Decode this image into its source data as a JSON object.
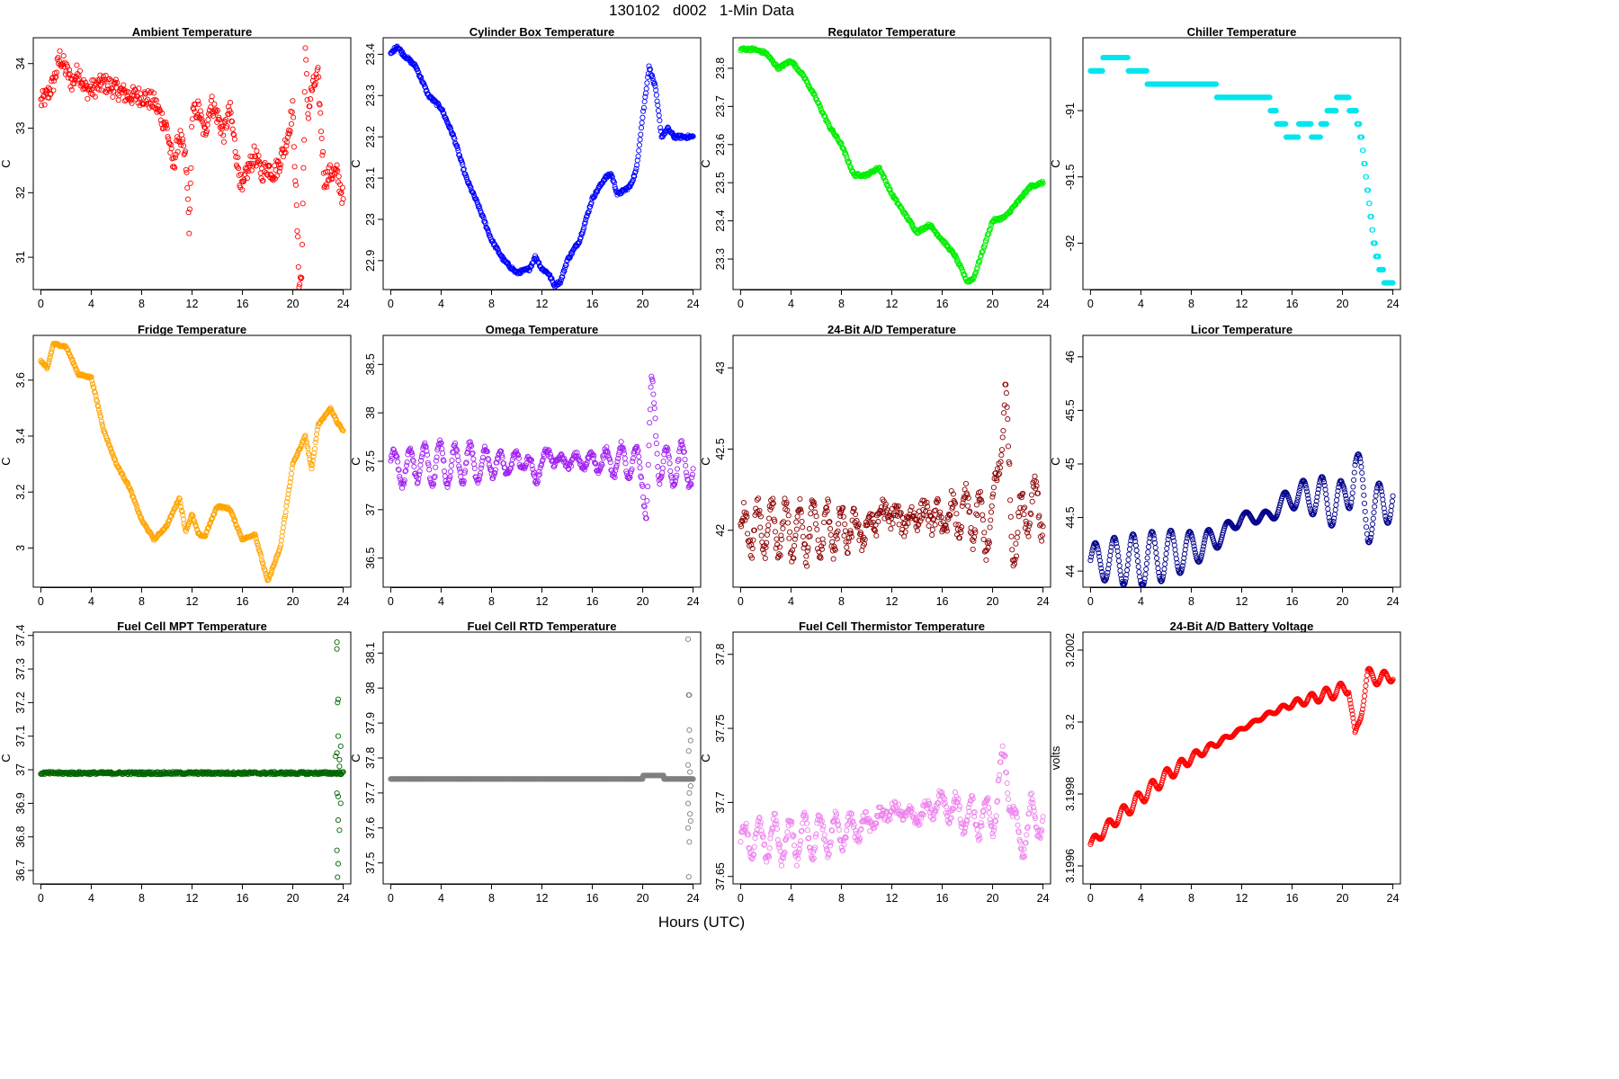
{
  "title": "130102   d002   1-Min Data",
  "x_axis_title": "Hours (UTC)",
  "chart_data": [
    {
      "type": "scatter",
      "title": "Ambient Temperature",
      "ylabel": "C",
      "color": "#ff0000",
      "ylim": [
        30.5,
        34.4
      ],
      "yticks": [
        31,
        32,
        33,
        34
      ],
      "xlim": [
        0,
        24
      ],
      "xticks": [
        0,
        4,
        8,
        12,
        16,
        20,
        24
      ],
      "noise": 0.15,
      "x": [
        0,
        0.5,
        1,
        1.5,
        2,
        2.5,
        3,
        3.5,
        4,
        5,
        6,
        7,
        8,
        9,
        10,
        10.5,
        11,
        11.5,
        11.8,
        12,
        12.5,
        13,
        13.5,
        14,
        14.5,
        15,
        15.5,
        16,
        16.3,
        17,
        17.5,
        18,
        18.5,
        19,
        19.5,
        20,
        20.5,
        20.7,
        21,
        21.2,
        21.5,
        22,
        22.5,
        23,
        23.5,
        24
      ],
      "y": [
        33.4,
        33.5,
        33.7,
        34.1,
        33.9,
        33.7,
        33.9,
        33.6,
        33.6,
        33.7,
        33.6,
        33.5,
        33.5,
        33.4,
        33.0,
        32.4,
        32.9,
        32.5,
        31.4,
        33.2,
        33.3,
        32.9,
        33.4,
        33.2,
        32.9,
        33.3,
        32.6,
        32.0,
        32.3,
        32.6,
        32.3,
        32.4,
        32.3,
        32.5,
        32.8,
        33.3,
        30.6,
        30.7,
        34.2,
        33.2,
        33.6,
        33.8,
        32.2,
        32.3,
        32.3,
        31.9
      ]
    },
    {
      "type": "scatter",
      "title": "Cylinder Box Temperature",
      "ylabel": "C",
      "color": "#0000ff",
      "ylim": [
        22.83,
        23.44
      ],
      "yticks": [
        22.9,
        23.0,
        23.1,
        23.2,
        23.3,
        23.4
      ],
      "xlim": [
        0,
        24
      ],
      "xticks": [
        0,
        4,
        8,
        12,
        16,
        20,
        24
      ],
      "noise": 0.004,
      "x": [
        0,
        0.5,
        1,
        2,
        3,
        4,
        5,
        6,
        7,
        8,
        9,
        10,
        11,
        11.5,
        12,
        12.5,
        13,
        13.5,
        14,
        15,
        16,
        17,
        17.5,
        18,
        19,
        19.5,
        20,
        20.5,
        21,
        21.5,
        22,
        22.5,
        23,
        24
      ],
      "y": [
        23.4,
        23.42,
        23.4,
        23.37,
        23.3,
        23.27,
        23.2,
        23.1,
        23.03,
        22.95,
        22.9,
        22.87,
        22.88,
        22.91,
        22.88,
        22.87,
        22.84,
        22.85,
        22.9,
        22.95,
        23.05,
        23.1,
        23.11,
        23.06,
        23.08,
        23.12,
        23.25,
        23.37,
        23.32,
        23.2,
        23.22,
        23.2,
        23.2,
        23.2
      ]
    },
    {
      "type": "scatter",
      "title": "Regulator Temperature",
      "ylabel": "C",
      "color": "#00ee00",
      "ylim": [
        23.22,
        23.88
      ],
      "yticks": [
        23.3,
        23.4,
        23.5,
        23.6,
        23.7,
        23.8
      ],
      "xlim": [
        0,
        24
      ],
      "xticks": [
        0,
        4,
        8,
        12,
        16,
        20,
        24
      ],
      "noise": 0.004,
      "x": [
        0,
        1,
        2,
        3,
        4,
        5,
        6,
        7,
        8,
        9,
        10,
        11,
        12,
        13,
        14,
        15,
        16,
        17,
        18,
        18.5,
        19,
        20,
        21,
        22,
        23,
        24
      ],
      "y": [
        23.85,
        23.85,
        23.84,
        23.8,
        23.82,
        23.78,
        23.72,
        23.65,
        23.6,
        23.52,
        23.52,
        23.54,
        23.47,
        23.42,
        23.37,
        23.39,
        23.35,
        23.31,
        23.24,
        23.25,
        23.3,
        23.4,
        23.41,
        23.45,
        23.49,
        23.5
      ]
    },
    {
      "type": "scatter",
      "title": "Chiller Temperature",
      "ylabel": "C",
      "color": "#00e5ee",
      "ylim": [
        -92.35,
        -90.45
      ],
      "yticks": [
        -92.0,
        -91.5,
        -91.0
      ],
      "xlim": [
        0,
        24
      ],
      "xticks": [
        0,
        4,
        8,
        12,
        16,
        20,
        24
      ],
      "noise": 0.0,
      "step": 0.1,
      "x": [
        0,
        2,
        4,
        5,
        7,
        9,
        11,
        12,
        14,
        15,
        16,
        17,
        18,
        19,
        20,
        21,
        21.5,
        22,
        22.5,
        23,
        23.5,
        24
      ],
      "y": [
        -90.7,
        -90.6,
        -90.7,
        -90.8,
        -90.8,
        -90.8,
        -90.9,
        -90.9,
        -90.9,
        -91.1,
        -91.2,
        -91.1,
        -91.2,
        -91.0,
        -90.9,
        -91.0,
        -91.2,
        -91.6,
        -92.0,
        -92.2,
        -92.3,
        -92.3
      ]
    },
    {
      "type": "scatter",
      "title": "Fridge Temperature",
      "ylabel": "C",
      "color": "#ffa500",
      "ylim": [
        2.86,
        3.76
      ],
      "yticks": [
        3.0,
        3.2,
        3.4,
        3.6
      ],
      "xlim": [
        0,
        24
      ],
      "xticks": [
        0,
        4,
        8,
        12,
        16,
        20,
        24
      ],
      "noise": 0.004,
      "x": [
        0,
        0.5,
        1,
        2,
        3,
        4,
        5,
        6,
        7,
        8,
        9,
        10,
        11,
        11.5,
        12,
        12.5,
        13,
        14,
        15,
        16,
        17,
        18,
        19,
        20,
        21,
        21.5,
        22,
        23,
        23.5,
        24
      ],
      "y": [
        3.67,
        3.64,
        3.73,
        3.72,
        3.62,
        3.61,
        3.42,
        3.3,
        3.22,
        3.1,
        3.03,
        3.08,
        3.18,
        3.06,
        3.12,
        3.05,
        3.04,
        3.15,
        3.14,
        3.03,
        3.05,
        2.88,
        3.0,
        3.3,
        3.4,
        3.28,
        3.44,
        3.5,
        3.45,
        3.42
      ]
    },
    {
      "type": "scatter",
      "title": "Omega Temperature",
      "ylabel": "C",
      "color": "#a020f0",
      "ylim": [
        36.2,
        38.8
      ],
      "yticks": [
        36.5,
        37.0,
        37.5,
        38.0,
        38.5
      ],
      "xlim": [
        0,
        24
      ],
      "xticks": [
        0,
        4,
        8,
        12,
        16,
        20,
        24
      ],
      "noise": 0.03,
      "x": [
        0,
        1,
        2,
        3,
        4,
        5,
        6,
        7,
        8,
        9,
        10,
        11,
        11.5,
        12,
        12.5,
        13,
        14,
        15,
        16,
        17,
        18,
        19,
        20,
        20.3,
        20.7,
        21,
        21.3,
        22,
        23,
        24
      ],
      "y": [
        37.5,
        37.4,
        37.5,
        37.45,
        37.5,
        37.45,
        37.5,
        37.45,
        37.5,
        37.45,
        37.5,
        37.5,
        37.3,
        37.5,
        37.6,
        37.5,
        37.5,
        37.5,
        37.5,
        37.5,
        37.5,
        37.5,
        37.4,
        37.0,
        38.2,
        37.9,
        37.5,
        37.4,
        37.5,
        37.4
      ],
      "osc_amp": 0.22,
      "osc_period": 1.2
    },
    {
      "type": "scatter",
      "title": "24-Bit A/D Temperature",
      "ylabel": "C",
      "color": "#8b0000",
      "ylim": [
        41.65,
        43.2
      ],
      "yticks": [
        42.0,
        42.5,
        43.0
      ],
      "xlim": [
        0,
        24
      ],
      "xticks": [
        0,
        4,
        8,
        12,
        16,
        20,
        24
      ],
      "noise": 0.06,
      "x": [
        0,
        2,
        4,
        6,
        8,
        10,
        11,
        12,
        13,
        14,
        15,
        16,
        17,
        18,
        19,
        20,
        20.5,
        21,
        21.5,
        22,
        23,
        24
      ],
      "y": [
        42.0,
        42.0,
        42.0,
        42.0,
        42.0,
        42.0,
        42.1,
        42.1,
        42.05,
        42.1,
        42.1,
        42.05,
        42.1,
        42.1,
        42.05,
        42.0,
        42.5,
        42.8,
        42.0,
        42.0,
        42.2,
        42.1
      ],
      "osc_amp": 0.18,
      "osc_period": 1.1
    },
    {
      "type": "scatter",
      "title": "Licor Temperature",
      "ylabel": "C",
      "color": "#00008b",
      "ylim": [
        43.85,
        46.2
      ],
      "yticks": [
        44.0,
        44.5,
        45.0,
        45.5,
        46.0
      ],
      "xlim": [
        0,
        24
      ],
      "xticks": [
        0,
        4,
        8,
        12,
        16,
        20,
        24
      ],
      "noise": 0.0,
      "x": [
        0,
        4,
        8,
        10,
        12,
        14,
        16,
        18,
        20,
        21,
        22,
        23,
        24
      ],
      "y": [
        44.1,
        44.1,
        44.2,
        44.3,
        44.5,
        44.5,
        44.7,
        44.7,
        44.6,
        45.0,
        44.5,
        44.6,
        44.7
      ],
      "osc_amp": 0.25,
      "osc_period": 1.5
    },
    {
      "type": "scatter",
      "title": "Fuel Cell MPT Temperature",
      "ylabel": "C",
      "color": "#006400",
      "ylim": [
        36.66,
        37.41
      ],
      "yticks": [
        36.7,
        36.8,
        36.9,
        37.0,
        37.1,
        37.2,
        37.3,
        37.4
      ],
      "xlim": [
        0,
        24
      ],
      "xticks": [
        0,
        4,
        8,
        12,
        16,
        20,
        24
      ],
      "noise": 0.004,
      "x": [
        0,
        4,
        8,
        12,
        16,
        20,
        23,
        23.4,
        24
      ],
      "y": [
        36.99,
        36.99,
        36.99,
        36.99,
        36.99,
        36.99,
        36.99,
        36.99,
        36.99
      ],
      "outliers": [
        [
          23.5,
          37.38
        ],
        [
          23.5,
          37.36
        ],
        [
          23.55,
          37.2
        ],
        [
          23.6,
          37.21
        ],
        [
          23.6,
          37.1
        ],
        [
          23.5,
          37.05
        ],
        [
          23.7,
          37.03
        ],
        [
          23.7,
          37.01
        ],
        [
          23.5,
          36.93
        ],
        [
          23.6,
          36.92
        ],
        [
          23.8,
          36.9
        ],
        [
          23.6,
          36.85
        ],
        [
          23.7,
          36.82
        ],
        [
          23.5,
          36.76
        ],
        [
          23.6,
          36.72
        ],
        [
          23.55,
          36.68
        ],
        [
          23.8,
          37.07
        ],
        [
          23.4,
          37.04
        ]
      ]
    },
    {
      "type": "scatter",
      "title": "Fuel Cell RTD Temperature",
      "ylabel": "C",
      "color": "#7f7f7f",
      "ylim": [
        37.44,
        38.16
      ],
      "yticks": [
        37.5,
        37.6,
        37.7,
        37.8,
        37.9,
        38.0,
        38.1
      ],
      "xlim": [
        0,
        24
      ],
      "xticks": [
        0,
        4,
        8,
        12,
        16,
        20,
        24
      ],
      "noise": 0.0,
      "step": 0.01,
      "x": [
        0,
        4,
        8,
        12,
        16,
        20,
        21,
        22,
        23,
        24
      ],
      "y": [
        37.735,
        37.74,
        37.74,
        37.74,
        37.745,
        37.745,
        37.755,
        37.74,
        37.745,
        37.745
      ],
      "outliers": [
        [
          23.6,
          38.14
        ],
        [
          23.65,
          37.98
        ],
        [
          23.7,
          37.98
        ],
        [
          23.7,
          37.88
        ],
        [
          23.8,
          37.85
        ],
        [
          23.65,
          37.82
        ],
        [
          23.6,
          37.78
        ],
        [
          23.75,
          37.76
        ],
        [
          23.8,
          37.72
        ],
        [
          23.7,
          37.7
        ],
        [
          23.6,
          37.67
        ],
        [
          23.75,
          37.64
        ],
        [
          23.8,
          37.62
        ],
        [
          23.6,
          37.6
        ],
        [
          23.7,
          37.56
        ],
        [
          23.65,
          37.46
        ]
      ]
    },
    {
      "type": "scatter",
      "title": "Fuel Cell Thermistor Temperature",
      "ylabel": "C",
      "color": "#ee82ee",
      "ylim": [
        37.645,
        37.815
      ],
      "yticks": [
        37.65,
        37.7,
        37.75,
        37.8
      ],
      "xlim": [
        0,
        24
      ],
      "xticks": [
        0,
        4,
        8,
        12,
        16,
        20,
        24
      ],
      "noise": 0.004,
      "x": [
        0,
        4,
        8,
        10,
        12,
        14,
        16,
        18,
        20,
        21,
        22,
        23,
        24
      ],
      "y": [
        37.675,
        37.675,
        37.68,
        37.685,
        37.695,
        37.69,
        37.7,
        37.69,
        37.69,
        37.73,
        37.67,
        37.69,
        37.69
      ],
      "osc_amp": 0.015,
      "osc_period": 1.2
    },
    {
      "type": "scatter",
      "title": "24-Bit A/D Battery Voltage",
      "ylabel": "volts",
      "color": "#ff0000",
      "ylim": [
        3.19955,
        3.20025
      ],
      "yticks": [
        3.1996,
        3.1998,
        3.2,
        3.2002
      ],
      "xlim": [
        0,
        24
      ],
      "xticks": [
        0,
        4,
        8,
        12,
        16,
        20,
        24
      ],
      "noise": 0.0,
      "x": [
        0,
        2,
        4,
        6,
        8,
        10,
        12,
        14,
        16,
        18,
        20,
        20.5,
        21,
        21.3,
        22,
        23,
        24
      ],
      "y": [
        3.19966,
        3.19973,
        3.19979,
        3.19985,
        3.1999,
        3.19994,
        3.19998,
        3.20002,
        3.20005,
        3.20007,
        3.20009,
        3.2001,
        3.19995,
        3.2,
        3.20013,
        3.20012,
        3.20013
      ],
      "osc_amp": 2e-05,
      "osc_period": 1.15
    }
  ]
}
